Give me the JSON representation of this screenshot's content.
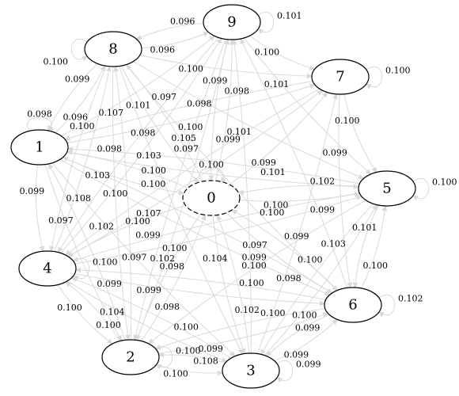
{
  "colors": {
    "edge": "#d9d9d9",
    "node_border": "#000000",
    "highlight_border": "#e41a1c",
    "label": "#000000"
  },
  "nodes": [
    {
      "id": "0",
      "label": "0",
      "style": "dashed"
    },
    {
      "id": "1",
      "label": "1",
      "style": "solid"
    },
    {
      "id": "2",
      "label": "2",
      "style": "solid"
    },
    {
      "id": "3",
      "label": "3",
      "style": "solid"
    },
    {
      "id": "4",
      "label": "4",
      "style": "solid"
    },
    {
      "id": "5",
      "label": "5",
      "style": "solid"
    },
    {
      "id": "6",
      "label": "6",
      "style": "solid"
    },
    {
      "id": "7",
      "label": "7",
      "style": "solid"
    },
    {
      "id": "8",
      "label": "8",
      "style": "highlighted"
    },
    {
      "id": "9",
      "label": "9",
      "style": "solid"
    }
  ],
  "edges": [
    {
      "from": "8",
      "to": "9",
      "weight": "0.096"
    },
    {
      "from": "9",
      "to": "8",
      "weight": "0.096"
    },
    {
      "from": "8",
      "to": "6",
      "weight": "0.105"
    },
    {
      "from": "1",
      "to": "9",
      "weight": "0.107"
    },
    {
      "from": "8",
      "to": "1",
      "weight": "0.099"
    },
    {
      "from": "1",
      "to": "8",
      "weight": "0.096"
    },
    {
      "from": "8",
      "to": "3",
      "weight": "0.103"
    },
    {
      "from": "8",
      "to": "7",
      "weight": "0.100"
    },
    {
      "from": "4",
      "to": "9",
      "weight": "0.100"
    },
    {
      "from": "8",
      "to": "0",
      "weight": "0.101"
    },
    {
      "from": "8",
      "to": "5",
      "weight": "0.098"
    },
    {
      "from": "8",
      "to": "4",
      "weight": "0.100"
    },
    {
      "from": "2",
      "to": "8",
      "weight": "0.097"
    },
    {
      "from": "1",
      "to": "7",
      "weight": "0.098"
    },
    {
      "from": "4",
      "to": "7",
      "weight": "0.107"
    },
    {
      "from": "9",
      "to": "7",
      "weight": "0.100"
    },
    {
      "from": "9",
      "to": "2",
      "weight": "0.100"
    },
    {
      "from": "9",
      "to": "0",
      "weight": "0.099"
    },
    {
      "from": "1",
      "to": "5",
      "weight": "0.100"
    },
    {
      "from": "7",
      "to": "1",
      "weight": "0.098"
    },
    {
      "from": "8",
      "to": "2",
      "weight": "0.098"
    },
    {
      "from": "9",
      "to": "5",
      "weight": "0.101"
    },
    {
      "from": "7",
      "to": "4",
      "weight": "0.101"
    },
    {
      "from": "7",
      "to": "5",
      "weight": "0.100"
    },
    {
      "from": "7",
      "to": "6",
      "weight": "0.099"
    },
    {
      "from": "3",
      "to": "7",
      "weight": "0.098"
    },
    {
      "from": "1",
      "to": "2",
      "weight": "0.097"
    },
    {
      "from": "1",
      "to": "6",
      "weight": "0.100"
    },
    {
      "from": "1",
      "to": "0",
      "weight": "0.103"
    },
    {
      "from": "1",
      "to": "4",
      "weight": "0.099"
    },
    {
      "from": "1",
      "to": "3",
      "weight": "0.102"
    },
    {
      "from": "9",
      "to": "4",
      "weight": "0.097"
    },
    {
      "from": "0",
      "to": "7",
      "weight": "0.099"
    },
    {
      "from": "0",
      "to": "9",
      "weight": "0.099"
    },
    {
      "from": "0",
      "to": "5",
      "weight": "0.100"
    },
    {
      "from": "2",
      "to": "1",
      "weight": "0.099"
    },
    {
      "from": "4",
      "to": "8",
      "weight": "0.108"
    },
    {
      "from": "0",
      "to": "1",
      "weight": "0.100"
    },
    {
      "from": "5",
      "to": "4",
      "weight": "0.100"
    },
    {
      "from": "6",
      "to": "1",
      "weight": "0.097"
    },
    {
      "from": "0",
      "to": "8",
      "weight": "0.097"
    },
    {
      "from": "0",
      "to": "2",
      "weight": "0.100"
    },
    {
      "from": "0",
      "to": "4",
      "weight": "0.099"
    },
    {
      "from": "2",
      "to": "0",
      "weight": "0.098"
    },
    {
      "from": "0",
      "to": "6",
      "weight": "0.099"
    },
    {
      "from": "3",
      "to": "0",
      "weight": "0.102"
    },
    {
      "from": "6",
      "to": "0",
      "weight": "0.100"
    },
    {
      "from": "5",
      "to": "0",
      "weight": "0.102"
    },
    {
      "from": "0",
      "to": "3",
      "weight": "0.104"
    },
    {
      "from": "5",
      "to": "1",
      "weight": "0.101"
    },
    {
      "from": "4",
      "to": "5",
      "weight": "0.102"
    },
    {
      "from": "2",
      "to": "9",
      "weight": "0.098"
    },
    {
      "from": "4",
      "to": "6",
      "weight": "0.099"
    },
    {
      "from": "6",
      "to": "4",
      "weight": "0.100"
    },
    {
      "from": "6",
      "to": "9",
      "weight": "0.099"
    },
    {
      "from": "6",
      "to": "2",
      "weight": "0.100"
    },
    {
      "from": "4",
      "to": "3",
      "weight": "0.104"
    },
    {
      "from": "3",
      "to": "4",
      "weight": "0.100"
    },
    {
      "from": "4",
      "to": "2",
      "weight": "0.100"
    },
    {
      "from": "2",
      "to": "4",
      "weight": "0.100"
    },
    {
      "from": "5",
      "to": "2",
      "weight": "0.099"
    },
    {
      "from": "5",
      "to": "3",
      "weight": "0.103"
    },
    {
      "from": "3",
      "to": "5",
      "weight": "0.100"
    },
    {
      "from": "6",
      "to": "3",
      "weight": "0.099"
    },
    {
      "from": "2",
      "to": "6",
      "weight": "0.099"
    },
    {
      "from": "3",
      "to": "9",
      "weight": "0.100"
    },
    {
      "from": "3",
      "to": "6",
      "weight": "0.099"
    },
    {
      "from": "2",
      "to": "3",
      "weight": "0.100"
    },
    {
      "from": "3",
      "to": "2",
      "weight": "0.108"
    },
    {
      "from": "5",
      "to": "6",
      "weight": "0.101"
    },
    {
      "from": "6",
      "to": "5",
      "weight": "0.100"
    }
  ],
  "self_loops": [
    {
      "node": "9",
      "weight": "0.101"
    },
    {
      "node": "7",
      "weight": "0.100"
    },
    {
      "node": "5",
      "weight": "0.100"
    },
    {
      "node": "6",
      "weight": "0.102"
    },
    {
      "node": "2",
      "weight": "0.100"
    },
    {
      "node": "3",
      "weight": "0.099"
    },
    {
      "node": "0",
      "weight": "0.100"
    },
    {
      "node": "1",
      "weight": "0.098"
    },
    {
      "node": "4",
      "weight": "0.100"
    },
    {
      "node": "8",
      "weight": "0.100"
    }
  ]
}
